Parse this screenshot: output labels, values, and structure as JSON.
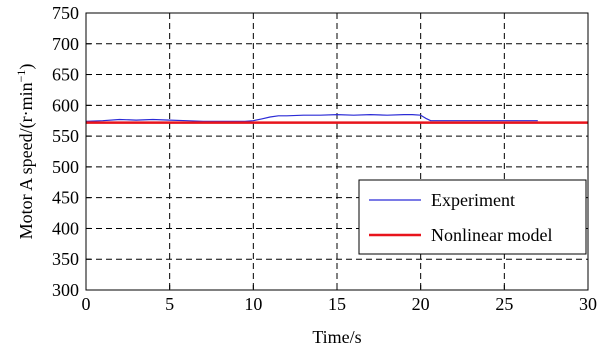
{
  "chart_data": {
    "type": "line",
    "title": "",
    "xlabel": "Time/s",
    "ylabel_main": "Motor A speed/(r·min",
    "ylabel_sup": "−1",
    "ylabel_close": ")",
    "xlim": [
      0,
      30
    ],
    "ylim": [
      300,
      750
    ],
    "xticks": [
      0,
      5,
      10,
      15,
      20,
      25,
      30
    ],
    "yticks": [
      300,
      350,
      400,
      450,
      500,
      550,
      600,
      650,
      700,
      750
    ],
    "grid": true,
    "legend_position": "lower-right",
    "series": [
      {
        "name": "Experiment",
        "color": "#2b2bd6",
        "x": [
          0,
          1,
          2,
          3,
          4,
          5,
          6,
          7,
          8,
          9,
          9.5,
          10,
          10.5,
          11,
          11.5,
          12,
          13,
          14,
          15,
          16,
          17,
          18,
          19,
          19.5,
          20,
          20.3,
          20.6,
          21,
          22,
          23,
          24,
          25,
          26,
          27
        ],
        "y": [
          574,
          575,
          577,
          576,
          577,
          576,
          575,
          574,
          574,
          574,
          574,
          575,
          578,
          581,
          583,
          583,
          584,
          584,
          585,
          584,
          585,
          584,
          585,
          585,
          584,
          579,
          575,
          575,
          575,
          575,
          575,
          575,
          575,
          575
        ]
      },
      {
        "name": "Nonlinear model",
        "color": "#e8141c",
        "x": [
          0,
          30
        ],
        "y": [
          572,
          572
        ]
      }
    ]
  }
}
